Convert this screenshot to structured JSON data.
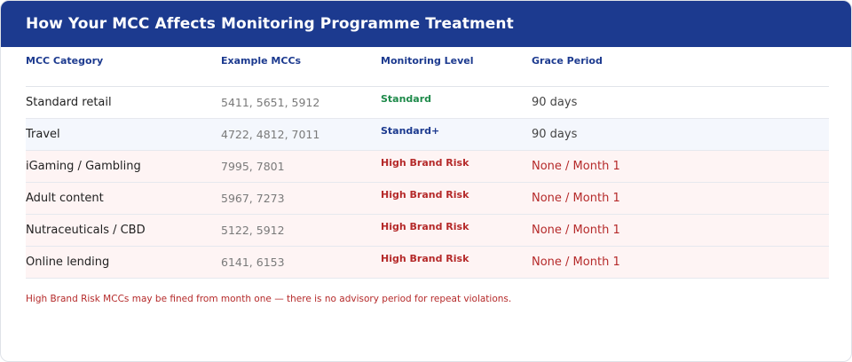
{
  "title": "How Your MCC Affects Monitoring Programme Treatment",
  "columns": [
    "MCC Category",
    "Example MCCs",
    "Monitoring Level",
    "Grace Period"
  ],
  "rows": [
    {
      "category": "Standard retail",
      "mccs": "5411, 5651, 5912",
      "level": "Standard",
      "grace": "90 days"
    },
    {
      "category": "Travel",
      "mccs": "4722, 4812, 7011",
      "level": "Standard+",
      "grace": "90 days"
    },
    {
      "category": "iGaming / Gambling",
      "mccs": "7995, 7801",
      "level": "High Brand Risk",
      "grace": "None / Month 1"
    },
    {
      "category": "Adult content",
      "mccs": "5967, 7273",
      "level": "High Brand Risk",
      "grace": "None / Month 1"
    },
    {
      "category": "Nutraceuticals / CBD",
      "mccs": "5122, 5912",
      "level": "High Brand Risk",
      "grace": "None / Month 1"
    },
    {
      "category": "Online lending",
      "mccs": "6141, 6153",
      "level": "High Brand Risk",
      "grace": "None / Month 1"
    }
  ],
  "footnote": "High Brand Risk MCCs may be fined from month one — there is no advisory period for repeat violations.",
  "colors": {
    "header_bg": "#1c3a8f",
    "standard": "#1e8a4a",
    "standard_plus": "#1c3a8f",
    "high_risk": "#b52a2a",
    "row_blue_tint": "#f4f7fd",
    "row_red_tint": "#fef4f4"
  }
}
